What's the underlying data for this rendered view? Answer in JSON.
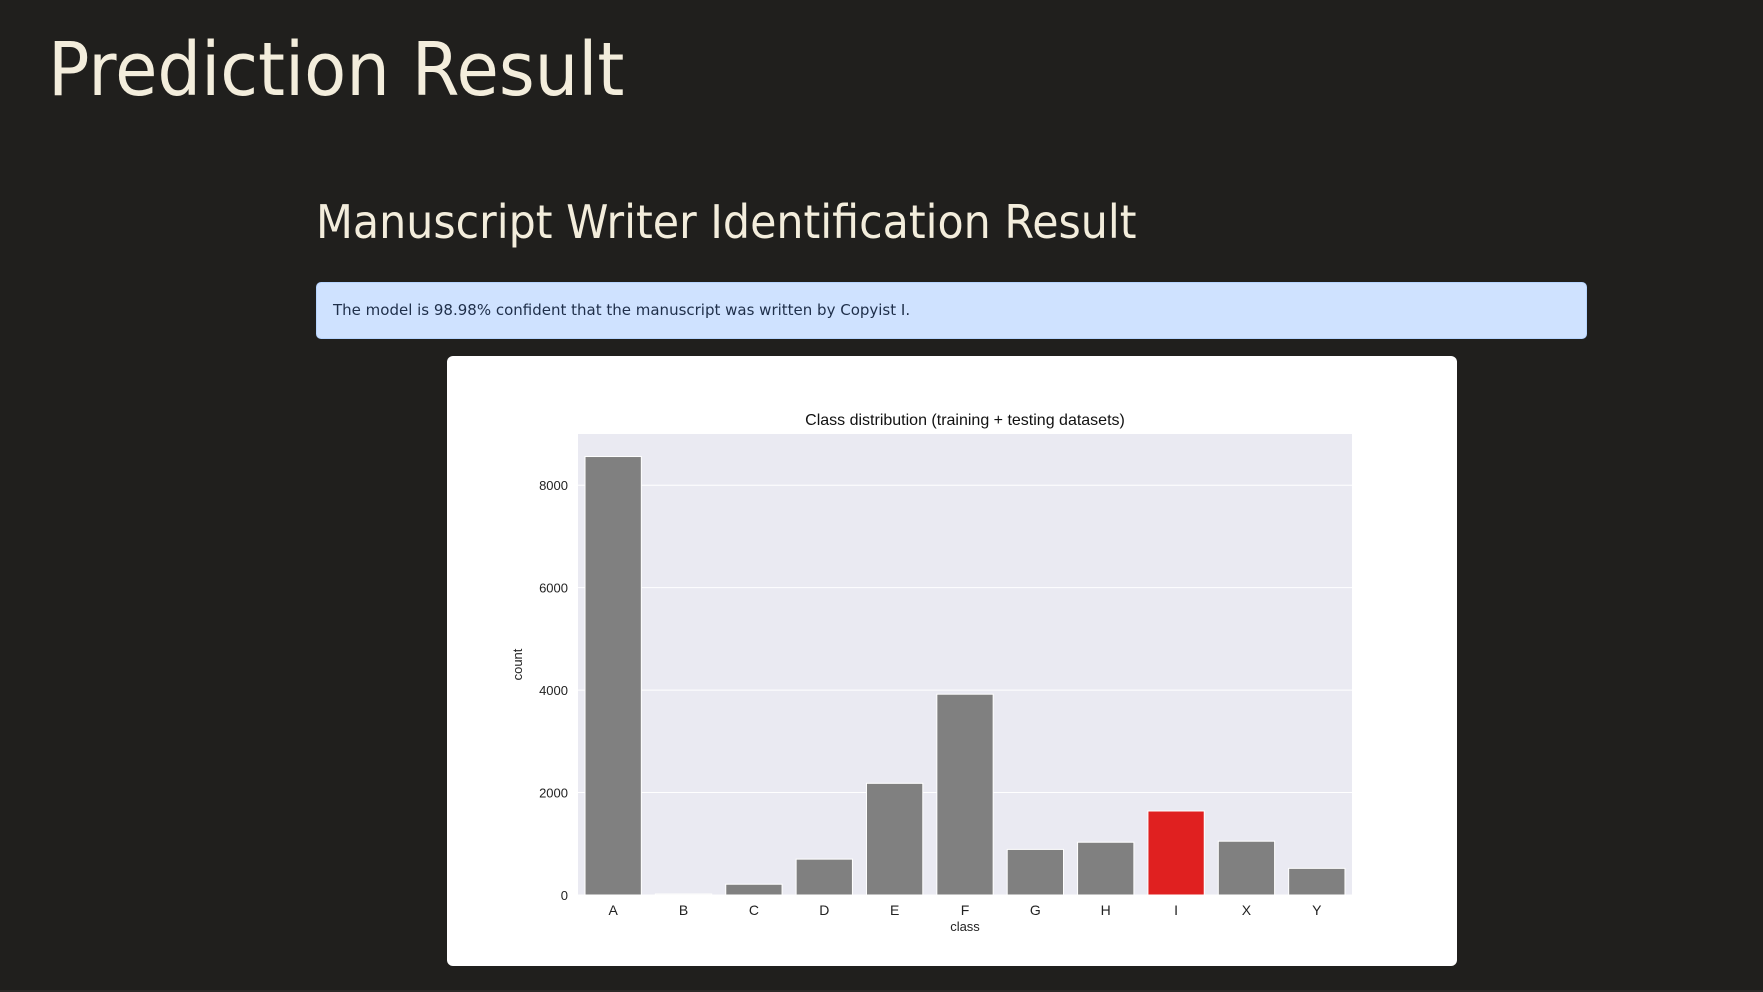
{
  "page": {
    "title": "Prediction Result",
    "section_title": "Manuscript Writer Identification Result",
    "alert_text": "The model is 98.98% confident that the manuscript was written by Copyist I."
  },
  "colors": {
    "background": "#201f1d",
    "title_text": "#f3eddc",
    "alert_background": "#cfe2ff",
    "bar_default": "#808080",
    "bar_highlight": "#e02020",
    "plot_background": "#eaeaf2"
  },
  "chart_data": {
    "type": "bar",
    "title": "Class distribution (training + testing datasets)",
    "xlabel": "class",
    "ylabel": "count",
    "categories": [
      "A",
      "B",
      "C",
      "D",
      "E",
      "F",
      "G",
      "H",
      "I",
      "X",
      "Y"
    ],
    "values": [
      8560,
      20,
      210,
      700,
      2180,
      3920,
      890,
      1030,
      1640,
      1050,
      520
    ],
    "highlight": "I",
    "ylim": [
      0,
      9000
    ],
    "yticks": [
      0,
      2000,
      4000,
      6000,
      8000
    ],
    "grid": true,
    "legend": "none"
  }
}
